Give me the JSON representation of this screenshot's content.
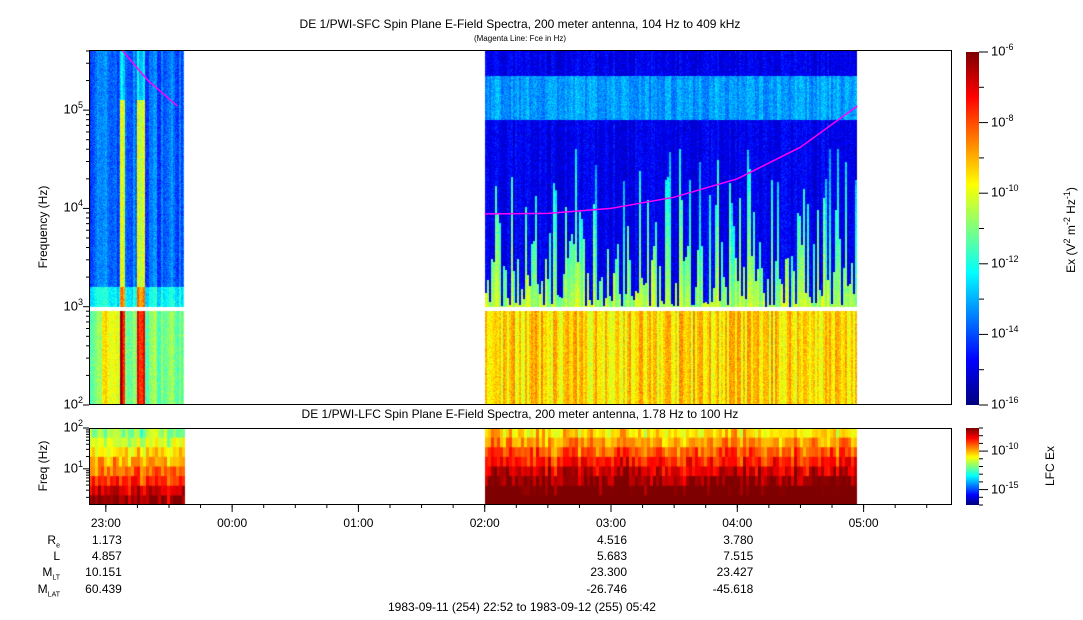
{
  "chart_data": [
    {
      "type": "heatmap",
      "title": "DE 1/PWI-SFC  Spin Plane E-Field Spectra, 200 meter antenna, 104 Hz to 409 kHz",
      "subtitle": "(Magenta Line: Fce in Hz)",
      "ylabel": "Frequency (Hz)",
      "yscale": "log",
      "ylim": [
        100,
        409000
      ],
      "y_ticks": [
        "10^2",
        "10^3",
        "10^4",
        "10^5"
      ],
      "xlim": [
        "22:52",
        "05:42"
      ],
      "x_ticks": [
        "23:00",
        "00:00",
        "01:00",
        "02:00",
        "03:00",
        "04:00",
        "05:00"
      ],
      "data_intervals": [
        [
          "22:52",
          "23:37"
        ],
        [
          "02:00",
          "04:57"
        ]
      ],
      "frequency_gap_hz": [
        900,
        1000
      ],
      "colorbar": {
        "label_base": "Ex (V",
        "label_sup1": "2",
        "label_mid": " m",
        "label_sup2": "-2",
        "label_mid2": " Hz",
        "label_sup3": "-1",
        "label_end": ")",
        "scale": "log",
        "range": [
          1e-16,
          1e-06
        ],
        "ticks": [
          "-6",
          "-8",
          "-10",
          "-12",
          "-14",
          "-16"
        ],
        "colormap": "jet"
      },
      "fce_line": {
        "color": "#ff00ff",
        "segments": [
          [
            [
              "23:08",
              400000
            ],
            [
              "23:20",
              200000
            ],
            [
              "23:34",
              110000
            ]
          ],
          [
            [
              "02:00",
              8800
            ],
            [
              "02:30",
              8900
            ],
            [
              "03:00",
              10000
            ],
            [
              "03:30",
              13000
            ],
            [
              "04:00",
              20000
            ],
            [
              "04:30",
              42000
            ],
            [
              "04:57",
              110000
            ]
          ]
        ]
      }
    },
    {
      "type": "heatmap",
      "title": "DE 1/PWI-LFC  Spin Plane E-Field Spectra, 200 meter antenna, 1.78 Hz to 100 Hz",
      "ylabel": "Freq (Hz)",
      "yscale": "log",
      "ylim": [
        1.3,
        100
      ],
      "y_ticks": [
        "10^1",
        "10^2"
      ],
      "xlim": [
        "22:52",
        "05:42"
      ],
      "data_intervals": [
        [
          "22:52",
          "23:37"
        ],
        [
          "02:00",
          "04:57"
        ]
      ],
      "colorbar": {
        "label": "LFC Ex",
        "scale": "log",
        "range": [
          1e-17,
          1e-07
        ],
        "ticks": [
          "-10",
          "-15"
        ],
        "colormap": "jet"
      }
    }
  ],
  "ephemeris": {
    "labels": [
      {
        "main": "R",
        "sub": "e"
      },
      {
        "main": "L",
        "sub": ""
      },
      {
        "main": "M",
        "sub": "LT"
      },
      {
        "main": "M",
        "sub": "LAT"
      }
    ],
    "columns": [
      {
        "time": "23:00",
        "values": [
          "1.173",
          "4.857",
          "10.151",
          "60.439"
        ]
      },
      {
        "time": "03:00",
        "values": [
          "4.516",
          "5.683",
          "23.300",
          "-26.746"
        ]
      },
      {
        "time": "04:00",
        "values": [
          "3.780",
          "7.515",
          "23.427",
          "-45.618"
        ]
      }
    ],
    "date_range": "1983-09-11 (254) 22:52 to 1983-09-12 (255) 05:42"
  }
}
